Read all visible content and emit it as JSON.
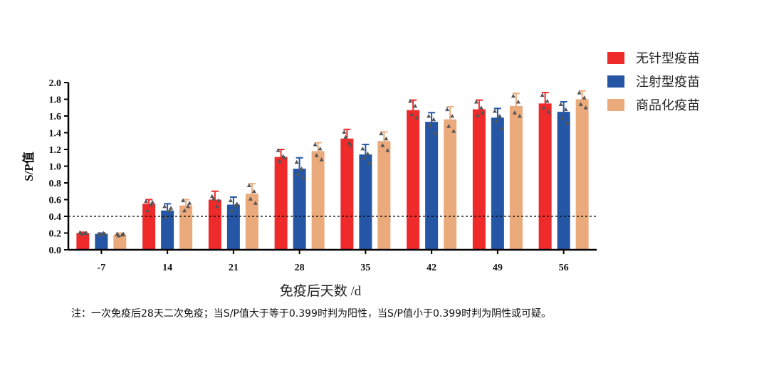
{
  "chart_data": {
    "type": "bar",
    "categories": [
      "-7",
      "14",
      "21",
      "28",
      "35",
      "42",
      "49",
      "56"
    ],
    "series": [
      {
        "name": "无针型疫苗",
        "color": "#ee2a2a",
        "values": [
          0.2,
          0.55,
          0.6,
          1.11,
          1.33,
          1.67,
          1.68,
          1.75
        ],
        "errors": [
          0.01,
          0.05,
          0.1,
          0.09,
          0.11,
          0.12,
          0.11,
          0.13
        ],
        "points": [
          [
            0.21,
            0.2,
            0.19,
            0.2
          ],
          [
            0.58,
            0.54,
            0.47,
            0.57
          ],
          [
            0.64,
            0.52,
            0.61,
            0.59
          ],
          [
            1.19,
            1.12,
            1.06,
            1.1
          ],
          [
            1.41,
            1.28,
            1.35,
            1.25
          ],
          [
            1.78,
            1.72,
            1.62,
            1.58
          ],
          [
            1.77,
            1.7,
            1.61,
            1.64
          ],
          [
            1.85,
            1.78,
            1.7,
            1.65
          ]
        ]
      },
      {
        "name": "注射型疫苗",
        "color": "#2556a6",
        "values": [
          0.19,
          0.47,
          0.54,
          0.97,
          1.14,
          1.53,
          1.58,
          1.65
        ],
        "errors": [
          0.01,
          0.08,
          0.09,
          0.13,
          0.12,
          0.11,
          0.11,
          0.12
        ],
        "points": [
          [
            0.19,
            0.2,
            0.18,
            0.19
          ],
          [
            0.52,
            0.47,
            0.39,
            0.5
          ],
          [
            0.59,
            0.53,
            0.47,
            0.55
          ],
          [
            1.05,
            0.97,
            0.91,
            0.86
          ],
          [
            1.21,
            1.15,
            1.1,
            1.04
          ],
          [
            1.6,
            1.56,
            1.49,
            1.4
          ],
          [
            1.66,
            1.6,
            1.54,
            1.45
          ],
          [
            1.74,
            1.68,
            1.58,
            1.52
          ]
        ]
      },
      {
        "name": "商品化疫苗",
        "color": "#ebaa7c",
        "values": [
          0.18,
          0.53,
          0.67,
          1.18,
          1.3,
          1.56,
          1.72,
          1.8
        ],
        "errors": [
          0.02,
          0.07,
          0.12,
          0.1,
          0.11,
          0.15,
          0.15,
          0.1
        ],
        "points": [
          [
            0.19,
            0.18,
            0.17,
            0.19
          ],
          [
            0.59,
            0.52,
            0.47,
            0.56
          ],
          [
            0.77,
            0.7,
            0.61,
            0.56
          ],
          [
            1.26,
            1.21,
            1.13,
            1.08
          ],
          [
            1.39,
            1.33,
            1.25,
            1.19
          ],
          [
            1.68,
            1.6,
            1.48,
            1.42
          ],
          [
            1.84,
            1.77,
            1.64,
            1.6
          ],
          [
            1.88,
            1.82,
            1.74,
            1.7
          ]
        ]
      }
    ],
    "ylabel": "S/P值",
    "xlabel": "免疫后天数 /d",
    "ylim": [
      0,
      2.0
    ],
    "yticks": [
      "0.0",
      "0.2",
      "0.4",
      "0.6",
      "0.8",
      "1.0",
      "1.2",
      "1.4",
      "1.6",
      "1.8",
      "2.0"
    ],
    "threshold": 0.4,
    "legend_position": "top-right",
    "grid": false
  },
  "note": "注：一次免疫后28天二次免疫；当S/P值大于等于0.399时判为阳性，当S/P值小于0.399时判为阴性或可疑。",
  "colors": {
    "points": "#555555",
    "axis": "#000000"
  }
}
